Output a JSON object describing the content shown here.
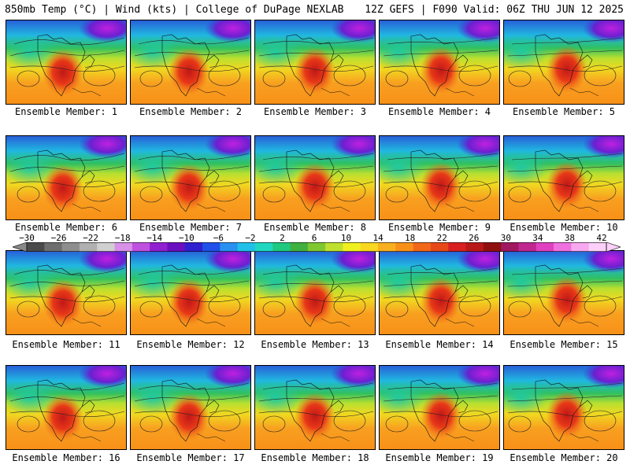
{
  "header": {
    "left": "850mb Temp (°C) | Wind (kts) | College of DuPage NEXLAB",
    "right": "12Z GEFS | F090 Valid: 06Z THU JUN 12 2025"
  },
  "panels": [
    {
      "label": "Ensemble Member: 1"
    },
    {
      "label": "Ensemble Member: 2"
    },
    {
      "label": "Ensemble Member: 3"
    },
    {
      "label": "Ensemble Member: 4"
    },
    {
      "label": "Ensemble Member: 5"
    },
    {
      "label": "Ensemble Member: 6"
    },
    {
      "label": "Ensemble Member: 7"
    },
    {
      "label": "Ensemble Member: 8"
    },
    {
      "label": "Ensemble Member: 9"
    },
    {
      "label": "Ensemble Member: 10"
    },
    {
      "label": "Ensemble Member: 11"
    },
    {
      "label": "Ensemble Member: 12"
    },
    {
      "label": "Ensemble Member: 13"
    },
    {
      "label": "Ensemble Member: 14"
    },
    {
      "label": "Ensemble Member: 15"
    },
    {
      "label": "Ensemble Member: 16"
    },
    {
      "label": "Ensemble Member: 17"
    },
    {
      "label": "Ensemble Member: 18"
    },
    {
      "label": "Ensemble Member: 19"
    },
    {
      "label": "Ensemble Member: 20"
    }
  ],
  "colorbar": {
    "labels": [
      "−30",
      "−26",
      "−22",
      "−18",
      "−14",
      "−10",
      "−6",
      "−2",
      "2",
      "6",
      "10",
      "14",
      "18",
      "22",
      "26",
      "30",
      "34",
      "38",
      "42"
    ],
    "colors": [
      "#4a4a4a",
      "#6e6e6e",
      "#8e8e8e",
      "#b0b0b0",
      "#d0d0d0",
      "#d890e8",
      "#c050e0",
      "#9020d0",
      "#6a10c0",
      "#3020d0",
      "#2050e8",
      "#2890f0",
      "#20c0e8",
      "#20d8c0",
      "#20c880",
      "#40b040",
      "#80c830",
      "#c0e030",
      "#f0f020",
      "#f8d820",
      "#f8b020",
      "#f89018",
      "#f06818",
      "#e84818",
      "#d82020",
      "#b81818",
      "#901010",
      "#a01860",
      "#c02890",
      "#e040c0",
      "#f070e0",
      "#f8a8f0",
      "#fcd0f8"
    ]
  }
}
